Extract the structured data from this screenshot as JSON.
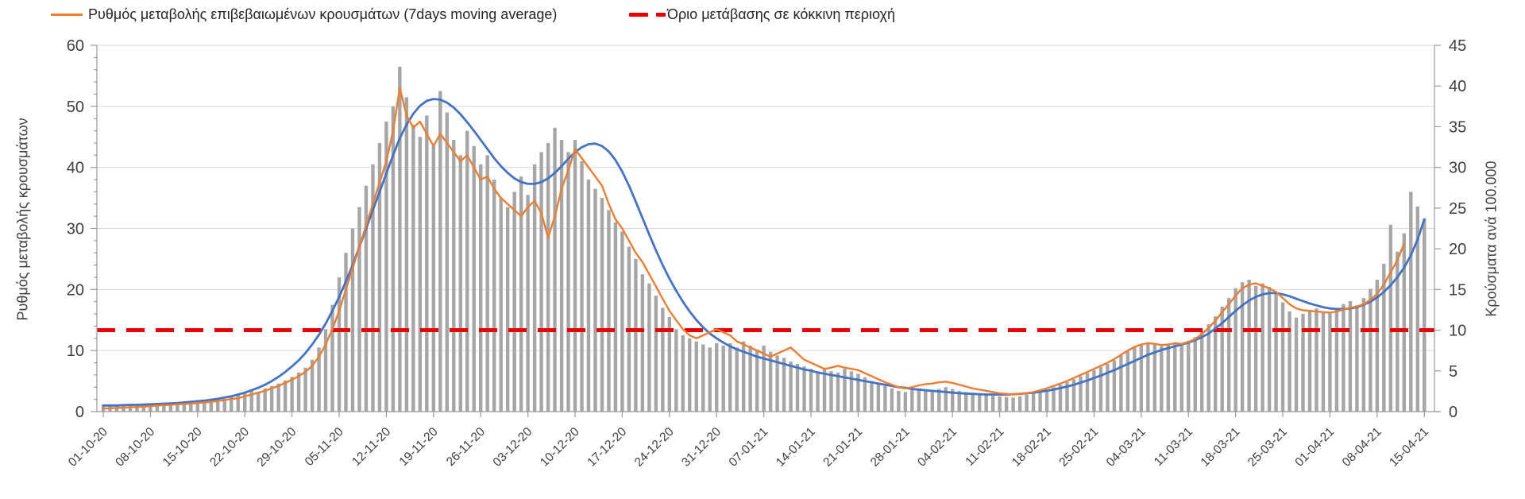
{
  "legend": {
    "ma_label": "Ρυθμός μεταβολής επιβεβαιωμένων κρουσμάτων (7days moving average)",
    "threshold_label": "Όριο μετάβασης σε κόκκινη περιοχή"
  },
  "axes": {
    "left_label": "Ρυθμός μεταβολής κρουσμάτων",
    "right_label": "Κρούσματα ανά 100.000",
    "left_ticks": [
      0,
      10,
      20,
      30,
      40,
      50,
      60
    ],
    "right_ticks": [
      0,
      5,
      10,
      15,
      20,
      25,
      30,
      35,
      40,
      45
    ],
    "left_range": [
      0,
      60
    ],
    "right_range": [
      0,
      45
    ]
  },
  "colors": {
    "bars": "#a6a6a6",
    "ma_line": "#ed7d31",
    "trend_line": "#4472c4",
    "threshold_line": "#e60000",
    "gridline": "#d9d9d9",
    "axis_line": "#9b9b9b",
    "tick_text": "#404040"
  },
  "chart_data": {
    "type": "bar",
    "title": "",
    "xlabel": "",
    "ylabel_left": "Ρυθμός μεταβολής κρουσμάτων",
    "ylabel_right": "Κρούσματα ανά 100.000",
    "ylim_left": [
      0,
      60
    ],
    "ylim_right": [
      0,
      45
    ],
    "grid": "horizontal",
    "legend_position": "top",
    "start_date": "01-10-20",
    "end_date": "15-04-21",
    "frequency": "daily",
    "note": "All series values stored on the left-axis scale (right axis value = left value x 0.75). Bars are daily values; orange line is the 7-day moving average; blue line is an unlabeled smooth trend; red dashed line is the red-zone threshold (10 per 100.000, i.e. 13.3 on left axis).",
    "x_tick_labels": [
      "01-10-20",
      "08-10-20",
      "15-10-20",
      "22-10-20",
      "29-10-20",
      "05-11-20",
      "12-11-20",
      "19-11-20",
      "26-11-20",
      "03-12-20",
      "10-12-20",
      "17-12-20",
      "24-12-20",
      "31-12-20",
      "07-01-21",
      "14-01-21",
      "21-01-21",
      "28-01-21",
      "04-02-21",
      "11-02-21",
      "18-02-21",
      "25-02-21",
      "04-03-21",
      "11-03-21",
      "18-03-21",
      "25-03-21",
      "01-04-21",
      "08-04-21",
      "15-04-21"
    ],
    "series": [
      {
        "name": "daily-bars",
        "type": "bar",
        "color": "#a6a6a6",
        "values": [
          1.1,
          0.9,
          1.0,
          1.2,
          1.0,
          1.1,
          1.2,
          1.3,
          1.2,
          1.4,
          1.3,
          1.5,
          1.4,
          1.6,
          1.8,
          1.7,
          2.0,
          2.2,
          2.1,
          2.4,
          2.7,
          3.0,
          3.4,
          3.2,
          3.8,
          4.2,
          4.6,
          5.1,
          5.7,
          6.4,
          7.2,
          8.5,
          10.5,
          13.5,
          17.5,
          22.0,
          26.0,
          30.0,
          33.5,
          37.0,
          40.5,
          44.0,
          47.5,
          50.0,
          56.5,
          51.5,
          47.0,
          45.0,
          48.5,
          43.5,
          52.5,
          49.0,
          44.5,
          42.0,
          46.0,
          43.5,
          40.5,
          42.0,
          38.0,
          35.0,
          33.5,
          36.0,
          38.5,
          35.5,
          40.5,
          42.5,
          44.0,
          46.5,
          44.5,
          42.5,
          44.5,
          41.0,
          38.0,
          36.5,
          35.0,
          33.0,
          31.0,
          29.5,
          27.0,
          25.0,
          22.5,
          21.0,
          19.0,
          17.0,
          15.5,
          13.5,
          12.5,
          12.0,
          11.5,
          11.0,
          10.5,
          11.2,
          10.8,
          11.2,
          10.5,
          11.5,
          10.8,
          10.2,
          10.8,
          9.8,
          9.2,
          8.8,
          8.2,
          7.8,
          7.4,
          7.0,
          6.6,
          7.0,
          6.6,
          6.4,
          7.0,
          6.6,
          6.2,
          5.6,
          5.0,
          4.6,
          4.2,
          3.8,
          3.4,
          3.2,
          3.5,
          3.8,
          3.6,
          3.4,
          3.7,
          4.0,
          3.7,
          3.4,
          3.2,
          3.1,
          3.0,
          2.8,
          2.6,
          2.5,
          2.4,
          2.3,
          2.5,
          2.8,
          3.0,
          3.3,
          3.6,
          4.0,
          4.4,
          4.8,
          5.3,
          5.8,
          6.3,
          6.8,
          7.3,
          7.8,
          8.4,
          9.2,
          9.9,
          10.6,
          11.0,
          11.3,
          11.0,
          10.7,
          11.0,
          11.3,
          11.0,
          11.6,
          12.2,
          13.2,
          14.3,
          15.6,
          17.2,
          18.6,
          20.2,
          21.2,
          21.6,
          20.6,
          21.0,
          20.4,
          19.4,
          17.9,
          16.4,
          15.4,
          16.0,
          16.6,
          16.9,
          16.4,
          16.1,
          16.8,
          17.6,
          18.1,
          17.4,
          18.6,
          20.1,
          21.6,
          24.2,
          30.6,
          26.2,
          29.2,
          36.0,
          33.6,
          31.6
        ]
      },
      {
        "name": "ma7-line",
        "label": "Ρυθμός μεταβολής επιβεβαιωμένων κρουσμάτων (7days moving average)",
        "type": "line",
        "color": "#ed7d31",
        "values": [
          0.5,
          0.55,
          0.6,
          0.65,
          0.7,
          0.75,
          0.8,
          0.9,
          1.0,
          1.05,
          1.1,
          1.2,
          1.25,
          1.3,
          1.4,
          1.5,
          1.6,
          1.75,
          1.9,
          2.05,
          2.2,
          2.5,
          2.8,
          3.1,
          3.4,
          3.8,
          4.2,
          4.7,
          5.2,
          5.8,
          6.5,
          7.5,
          9.0,
          11.0,
          13.5,
          16.5,
          20.0,
          23.5,
          27.0,
          30.5,
          34.0,
          37.5,
          41.0,
          46.0,
          53.0,
          48.5,
          46.5,
          47.5,
          45.5,
          43.5,
          45.5,
          44.0,
          42.5,
          41.0,
          42.0,
          40.0,
          38.0,
          38.5,
          36.5,
          35.0,
          34.0,
          33.0,
          32.0,
          33.5,
          34.5,
          32.5,
          28.5,
          32.0,
          36.5,
          39.5,
          43.0,
          41.5,
          40.0,
          38.5,
          37.0,
          34.0,
          31.5,
          30.0,
          28.0,
          26.0,
          24.5,
          22.5,
          20.5,
          18.5,
          16.5,
          15.0,
          13.5,
          12.5,
          12.0,
          12.5,
          13.0,
          13.5,
          13.0,
          12.5,
          11.5,
          11.0,
          10.5,
          10.0,
          9.5,
          9.0,
          9.5,
          10.0,
          10.5,
          9.5,
          8.5,
          8.0,
          7.5,
          7.0,
          7.2,
          7.5,
          7.2,
          7.0,
          6.8,
          6.3,
          5.8,
          5.3,
          4.8,
          4.4,
          4.0,
          3.8,
          4.0,
          4.3,
          4.5,
          4.6,
          4.8,
          4.9,
          4.7,
          4.4,
          4.1,
          3.8,
          3.6,
          3.4,
          3.2,
          3.0,
          2.9,
          2.8,
          2.9,
          3.0,
          3.2,
          3.5,
          3.8,
          4.2,
          4.6,
          5.0,
          5.5,
          6.0,
          6.5,
          7.0,
          7.5,
          8.0,
          8.6,
          9.3,
          10.0,
          10.6,
          11.0,
          11.2,
          11.1,
          10.9,
          11.0,
          11.2,
          11.1,
          11.4,
          11.9,
          12.7,
          13.7,
          14.9,
          16.3,
          17.6,
          19.0,
          20.2,
          20.8,
          21.0,
          20.6,
          20.2,
          19.6,
          18.6,
          17.6,
          16.9,
          16.6,
          16.5,
          16.4,
          16.3,
          16.2,
          16.4,
          16.7,
          17.0,
          17.2,
          17.6,
          18.3,
          19.3,
          20.8,
          22.8,
          24.8,
          27.5
        ]
      },
      {
        "name": "trend-line",
        "label": "",
        "type": "line",
        "color": "#4472c4",
        "values": [
          1.0,
          1.0,
          1.0,
          1.05,
          1.1,
          1.1,
          1.15,
          1.2,
          1.25,
          1.3,
          1.35,
          1.4,
          1.5,
          1.6,
          1.7,
          1.8,
          1.95,
          2.1,
          2.3,
          2.5,
          2.8,
          3.1,
          3.5,
          3.9,
          4.4,
          5.0,
          5.7,
          6.5,
          7.4,
          8.4,
          9.6,
          11.0,
          12.6,
          14.4,
          16.5,
          18.8,
          21.3,
          24.0,
          27.0,
          30.0,
          33.0,
          36.0,
          39.0,
          42.0,
          44.8,
          47.0,
          48.8,
          50.1,
          50.9,
          51.2,
          51.1,
          50.6,
          49.8,
          48.7,
          47.4,
          46.0,
          44.5,
          43.0,
          41.5,
          40.2,
          39.1,
          38.2,
          37.6,
          37.3,
          37.3,
          37.6,
          38.2,
          39.1,
          40.2,
          41.4,
          42.5,
          43.3,
          43.8,
          43.9,
          43.5,
          42.6,
          41.2,
          39.3,
          37.0,
          34.4,
          31.7,
          29.0,
          26.4,
          24.0,
          21.8,
          19.8,
          18.0,
          16.4,
          15.0,
          13.8,
          12.8,
          12.0,
          11.3,
          10.7,
          10.2,
          9.8,
          9.4,
          9.0,
          8.7,
          8.4,
          8.1,
          7.8,
          7.5,
          7.2,
          6.9,
          6.7,
          6.4,
          6.2,
          6.0,
          5.8,
          5.6,
          5.4,
          5.2,
          5.0,
          4.8,
          4.6,
          4.4,
          4.2,
          4.0,
          3.9,
          3.7,
          3.6,
          3.5,
          3.4,
          3.3,
          3.2,
          3.1,
          3.0,
          2.95,
          2.9,
          2.85,
          2.8,
          2.8,
          2.8,
          2.8,
          2.85,
          2.9,
          3.0,
          3.1,
          3.25,
          3.4,
          3.6,
          3.85,
          4.1,
          4.4,
          4.75,
          5.1,
          5.5,
          5.9,
          6.35,
          6.8,
          7.3,
          7.8,
          8.3,
          8.8,
          9.3,
          9.7,
          10.1,
          10.4,
          10.7,
          11.0,
          11.3,
          11.7,
          12.2,
          12.8,
          13.6,
          14.5,
          15.5,
          16.5,
          17.4,
          18.2,
          18.8,
          19.2,
          19.4,
          19.4,
          19.2,
          18.9,
          18.5,
          18.1,
          17.7,
          17.4,
          17.1,
          16.9,
          16.8,
          16.8,
          16.9,
          17.1,
          17.5,
          18.0,
          18.7,
          19.6,
          20.7,
          22.0,
          23.6,
          25.6,
          28.2,
          31.5
        ]
      },
      {
        "name": "threshold-line",
        "label": "Όριο μετάβασης σε κόκκινη περιοχή",
        "type": "hline",
        "color": "#e60000",
        "value_left_axis": 13.3,
        "value_right_axis": 10
      }
    ]
  }
}
